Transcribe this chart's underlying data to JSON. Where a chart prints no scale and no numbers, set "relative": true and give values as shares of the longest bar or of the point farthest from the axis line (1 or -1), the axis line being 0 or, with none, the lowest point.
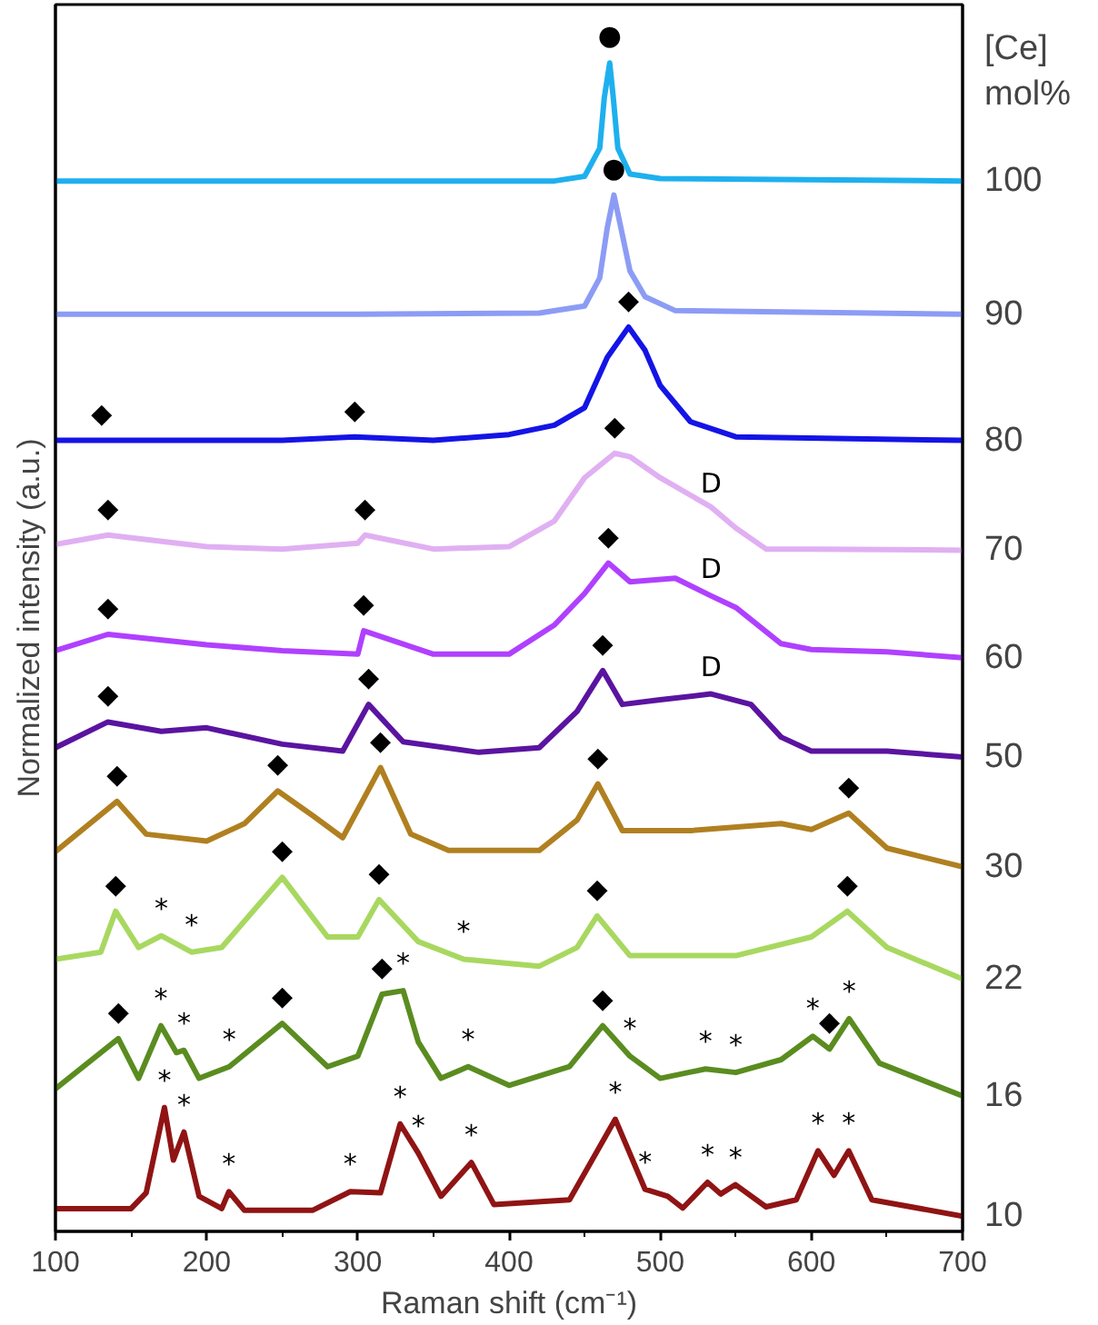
{
  "chart_data": {
    "type": "line",
    "relative": true,
    "xlabel": "Raman shift (cm⁻¹)",
    "ylabel": "Normalized intensity (a.u.)",
    "legend_title": "[Ce] mol%",
    "xlim": [
      100,
      700
    ],
    "xticks": [
      100,
      200,
      300,
      400,
      500,
      600,
      700
    ],
    "grid": false,
    "line_style": "solid",
    "marker": "none",
    "series": [
      {
        "name": "100",
        "color": "#1eb0ee",
        "x": [
          100,
          300,
          430,
          450,
          460,
          463,
          466.6,
          469,
          472,
          480,
          500,
          700
        ],
        "values": [
          0.899,
          0.899,
          0.899,
          0.903,
          0.927,
          0.97,
          1.0,
          0.97,
          0.927,
          0.905,
          0.901,
          0.899
        ]
      },
      {
        "name": "90",
        "color": "#8c9cf5",
        "x": [
          100,
          300,
          420,
          450,
          460,
          465,
          469.4,
          474,
          480,
          490,
          510,
          700
        ],
        "values": [
          0.785,
          0.785,
          0.786,
          0.792,
          0.816,
          0.859,
          0.887,
          0.859,
          0.822,
          0.8,
          0.788,
          0.785
        ]
      },
      {
        "name": "80",
        "color": "#1414e6",
        "x": [
          100,
          130.5,
          250,
          297.9,
          350,
          400,
          430,
          450,
          465,
          479.1,
          490,
          500,
          520,
          550,
          700
        ],
        "values": [
          0.677,
          0.677,
          0.677,
          0.68,
          0.677,
          0.682,
          0.69,
          0.705,
          0.748,
          0.774,
          0.754,
          0.724,
          0.693,
          0.68,
          0.677
        ]
      },
      {
        "name": "70",
        "color": "#e0b0f2",
        "x": [
          100,
          134.7,
          200,
          250,
          300,
          304.8,
          350,
          400,
          430,
          450,
          469.9,
          480,
          500,
          533.6,
          550,
          570,
          600,
          700
        ],
        "values": [
          0.588,
          0.596,
          0.586,
          0.584,
          0.589,
          0.596,
          0.584,
          0.586,
          0.608,
          0.645,
          0.666,
          0.663,
          0.645,
          0.62,
          0.602,
          0.584,
          0.584,
          0.583
        ]
      },
      {
        "name": "60",
        "color": "#b040ff",
        "x": [
          100,
          134.7,
          200,
          250,
          300,
          303.9,
          350,
          400,
          430,
          450,
          465.7,
          480,
          510,
          533.6,
          550,
          580,
          600,
          650,
          700
        ],
        "values": [
          0.497,
          0.511,
          0.502,
          0.497,
          0.494,
          0.514,
          0.494,
          0.494,
          0.519,
          0.546,
          0.572,
          0.556,
          0.559,
          0.544,
          0.534,
          0.503,
          0.498,
          0.496,
          0.491
        ]
      },
      {
        "name": "50",
        "color": "#5a14a0",
        "x": [
          100,
          134.7,
          170,
          200,
          250,
          290,
          307.1,
          330,
          380,
          420,
          445,
          462,
          475,
          500,
          533.6,
          560,
          580,
          600,
          650,
          700
        ],
        "values": [
          0.414,
          0.436,
          0.428,
          0.431,
          0.417,
          0.411,
          0.451,
          0.419,
          0.41,
          0.414,
          0.445,
          0.48,
          0.451,
          0.455,
          0.46,
          0.451,
          0.423,
          0.411,
          0.411,
          0.406
        ]
      },
      {
        "name": "30",
        "color": "#b08020",
        "x": [
          100,
          140.7,
          160,
          200,
          225,
          247,
          270,
          290,
          315,
          335,
          360,
          420,
          445,
          458.8,
          475,
          520,
          580,
          600,
          624.7,
          650,
          700
        ],
        "values": [
          0.325,
          0.368,
          0.34,
          0.334,
          0.349,
          0.377,
          0.356,
          0.337,
          0.397,
          0.34,
          0.326,
          0.326,
          0.352,
          0.383,
          0.343,
          0.343,
          0.349,
          0.344,
          0.358,
          0.328,
          0.312
        ]
      },
      {
        "name": "22",
        "color": "#a8d860",
        "x": [
          100,
          130,
          139.8,
          155,
          170,
          190,
          210,
          230,
          250,
          280,
          300,
          314,
          340,
          370,
          420,
          445,
          458.3,
          480,
          550,
          600,
          623.8,
          650,
          700
        ],
        "values": [
          0.233,
          0.239,
          0.274,
          0.243,
          0.253,
          0.239,
          0.243,
          0.273,
          0.303,
          0.252,
          0.252,
          0.284,
          0.248,
          0.233,
          0.227,
          0.243,
          0.27,
          0.236,
          0.236,
          0.252,
          0.274,
          0.243,
          0.216
        ]
      },
      {
        "name": "16",
        "color": "#5a8c20",
        "x": [
          100,
          141.6,
          155,
          169.8,
          180,
          185,
          195,
          215,
          250,
          280,
          300,
          316,
          330,
          340,
          355,
          373,
          400,
          440,
          462,
          480,
          500,
          530,
          550,
          580,
          601,
          612,
          625,
          645,
          700
        ],
        "values": [
          0.122,
          0.165,
          0.131,
          0.176,
          0.153,
          0.155,
          0.131,
          0.141,
          0.178,
          0.141,
          0.15,
          0.203,
          0.206,
          0.162,
          0.131,
          0.141,
          0.125,
          0.141,
          0.176,
          0.15,
          0.131,
          0.139,
          0.136,
          0.147,
          0.167,
          0.156,
          0.182,
          0.144,
          0.116
        ]
      },
      {
        "name": "10",
        "color": "#901414",
        "x": [
          100,
          150,
          160,
          172.1,
          178,
          185,
          195,
          210,
          214.7,
          225,
          270,
          295,
          315,
          328,
          340,
          355,
          375.1,
          390,
          440,
          470.3,
          490,
          505,
          515,
          531.3,
          540,
          549.8,
          570,
          590,
          604.4,
          615,
          624.7,
          640,
          700
        ],
        "values": [
          0.0195,
          0.0195,
          0.033,
          0.106,
          0.061,
          0.085,
          0.03,
          0.0195,
          0.034,
          0.018,
          0.018,
          0.034,
          0.033,
          0.092,
          0.067,
          0.03,
          0.059,
          0.023,
          0.027,
          0.096,
          0.036,
          0.03,
          0.02,
          0.042,
          0.032,
          0.04,
          0.021,
          0.027,
          0.069,
          0.048,
          0.069,
          0.027,
          0.013
        ]
      }
    ],
    "annotations": [
      {
        "text": "●",
        "x": 466.6,
        "y": 1.0
      },
      {
        "text": "●",
        "x": 469.4,
        "y": 0.887
      },
      {
        "text": "◆",
        "x": 479.1,
        "y": 0.774
      },
      {
        "text": "◆",
        "x": 130.5,
        "y": 0.677
      },
      {
        "text": "◆",
        "x": 297.9,
        "y": 0.68
      },
      {
        "text": "◆",
        "x": 469.9,
        "y": 0.666
      },
      {
        "text": "D",
        "x": 533.6,
        "y": 0.617
      },
      {
        "text": "◆",
        "x": 134.7,
        "y": 0.596
      },
      {
        "text": "◆",
        "x": 304.8,
        "y": 0.596
      },
      {
        "text": "◆",
        "x": 465.7,
        "y": 0.572
      },
      {
        "text": "D",
        "x": 533.6,
        "y": 0.544
      },
      {
        "text": "◆",
        "x": 134.7,
        "y": 0.511
      },
      {
        "text": "◆",
        "x": 303.9,
        "y": 0.514
      },
      {
        "text": "◆",
        "x": 462,
        "y": 0.48
      },
      {
        "text": "D",
        "x": 533.6,
        "y": 0.46
      },
      {
        "text": "◆",
        "x": 134.7,
        "y": 0.436
      },
      {
        "text": "◆",
        "x": 307.1,
        "y": 0.451
      },
      {
        "text": "◆",
        "x": 315,
        "y": 0.397
      },
      {
        "text": "◆",
        "x": 140.7,
        "y": 0.368
      },
      {
        "text": "◆",
        "x": 247,
        "y": 0.377
      },
      {
        "text": "◆",
        "x": 458.8,
        "y": 0.383
      },
      {
        "text": "◆",
        "x": 624.7,
        "y": 0.358
      },
      {
        "text": "◆",
        "x": 139.8,
        "y": 0.274
      },
      {
        "text": "◆",
        "x": 250,
        "y": 0.303
      },
      {
        "text": "◆",
        "x": 314,
        "y": 0.284
      },
      {
        "text": "◆",
        "x": 458.3,
        "y": 0.27
      },
      {
        "text": "◆",
        "x": 623.8,
        "y": 0.274
      },
      {
        "text": "*",
        "x": 170,
        "y": 0.253
      },
      {
        "text": "*",
        "x": 190,
        "y": 0.239
      },
      {
        "text": "*",
        "x": 370,
        "y": 0.233
      },
      {
        "text": "◆",
        "x": 141.6,
        "y": 0.165
      },
      {
        "text": "◆",
        "x": 250,
        "y": 0.178
      },
      {
        "text": "◆",
        "x": 316,
        "y": 0.203
      },
      {
        "text": "◆",
        "x": 462,
        "y": 0.176
      },
      {
        "text": "◆",
        "x": 612,
        "y": 0.156
      },
      {
        "text": "*",
        "x": 169.8,
        "y": 0.176
      },
      {
        "text": "*",
        "x": 185,
        "y": 0.155
      },
      {
        "text": "*",
        "x": 215,
        "y": 0.141
      },
      {
        "text": "*",
        "x": 330,
        "y": 0.206
      },
      {
        "text": "*",
        "x": 373,
        "y": 0.141
      },
      {
        "text": "*",
        "x": 480,
        "y": 0.15
      },
      {
        "text": "*",
        "x": 530,
        "y": 0.139
      },
      {
        "text": "*",
        "x": 550,
        "y": 0.136
      },
      {
        "text": "*",
        "x": 601,
        "y": 0.167
      },
      {
        "text": "*",
        "x": 625,
        "y": 0.182
      },
      {
        "text": "*",
        "x": 172.1,
        "y": 0.106
      },
      {
        "text": "*",
        "x": 185,
        "y": 0.085
      },
      {
        "text": "*",
        "x": 214.7,
        "y": 0.034
      },
      {
        "text": "*",
        "x": 295,
        "y": 0.034
      },
      {
        "text": "*",
        "x": 328,
        "y": 0.092
      },
      {
        "text": "*",
        "x": 340,
        "y": 0.067
      },
      {
        "text": "*",
        "x": 375.1,
        "y": 0.059
      },
      {
        "text": "*",
        "x": 470.3,
        "y": 0.096
      },
      {
        "text": "*",
        "x": 490,
        "y": 0.036
      },
      {
        "text": "*",
        "x": 531.3,
        "y": 0.042
      },
      {
        "text": "*",
        "x": 549.8,
        "y": 0.04
      },
      {
        "text": "*",
        "x": 604.4,
        "y": 0.069
      },
      {
        "text": "*",
        "x": 624.7,
        "y": 0.069
      }
    ]
  }
}
